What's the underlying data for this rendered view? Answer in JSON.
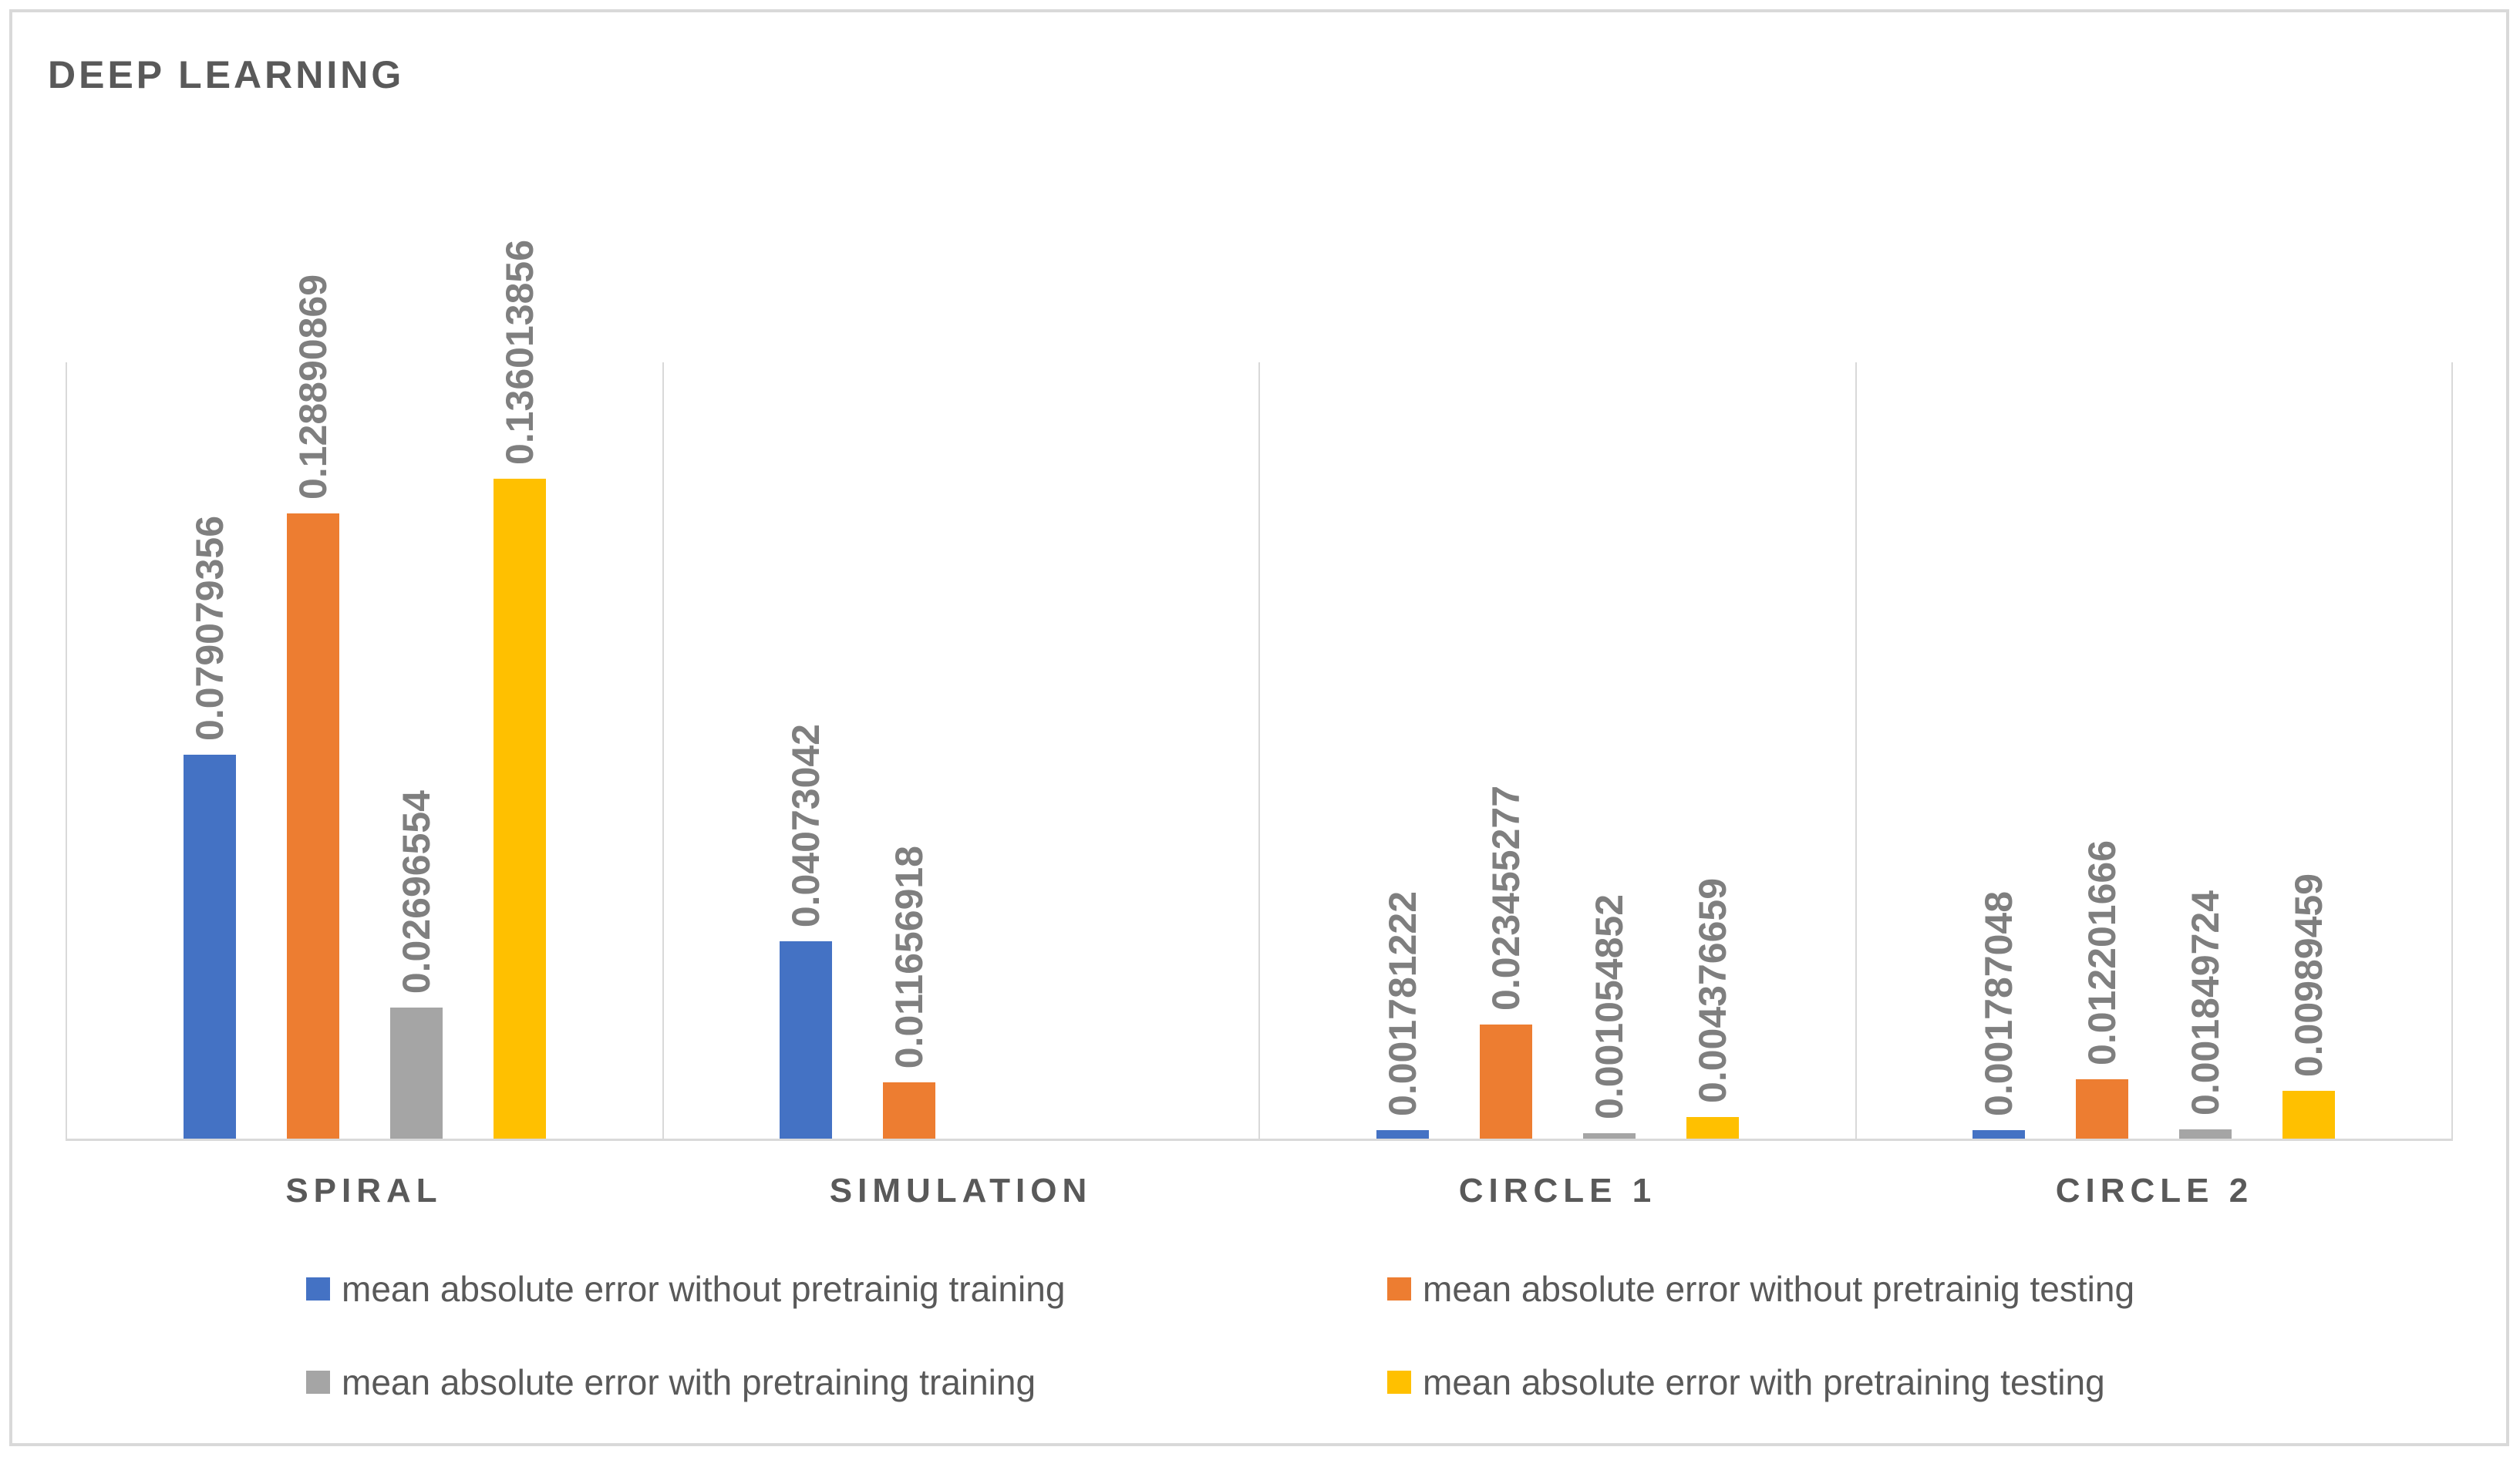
{
  "chart_data": {
    "type": "bar",
    "title": "DEEP LEARNING",
    "categories": [
      "SPIRAL",
      "SIMULATION",
      "CIRCLE 1",
      "CIRCLE 2"
    ],
    "series": [
      {
        "name": "mean absolute error without pretrainig training",
        "color": "#4472C4",
        "values": [
          0.079079356,
          0.04073042,
          0.001781222,
          0.001787048
        ],
        "labels": [
          "0.079079356",
          "0.04073042",
          "0.001781222",
          "0.001787048"
        ]
      },
      {
        "name": "mean absolute error without pretrainig testing",
        "color": "#ED7D31",
        "values": [
          0.128890869,
          0.011656918,
          0.023455277,
          0.012201666
        ],
        "labels": [
          "0.128890869",
          "0.011656918",
          "0.023455277",
          "0.012201666"
        ]
      },
      {
        "name": "mean absolute error with pretraining training",
        "color": "#A5A5A5",
        "values": [
          0.02696554,
          null,
          0.001054852,
          0.001849724
        ],
        "labels": [
          "0.02696554",
          null,
          "0.001054852",
          "0.001849724"
        ]
      },
      {
        "name": "mean absolute error with pretraining testing",
        "color": "#FFC000",
        "values": [
          0.136013856,
          null,
          0.004376659,
          0.00989459
        ],
        "labels": [
          "0.136013856",
          null,
          "0.004376659",
          "0.00989459"
        ]
      }
    ],
    "ylim": [
      0,
      0.16
    ],
    "y_axis_labels_visible": false,
    "grid": "vertical category separator lines only",
    "data_label_style": "rotated vertical, reads bottom to top, above bar",
    "legend_position": "bottom, two rows by two columns",
    "colors": {
      "plot_border": "#d9d9d9",
      "axis_line": "#d9d9d9",
      "title_text": "#595959",
      "category_text": "#595959",
      "legend_text": "#595959",
      "value_label_text": "#7f7f7f"
    }
  }
}
